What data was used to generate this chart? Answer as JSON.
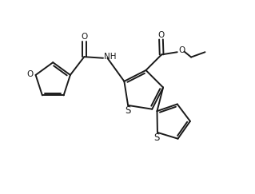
{
  "bg_color": "#ffffff",
  "line_color": "#1a1a1a",
  "line_width": 1.4,
  "font_size": 7.5,
  "fig_width": 3.19,
  "fig_height": 2.43,
  "dpi": 100,
  "xlim": [
    0,
    10
  ],
  "ylim": [
    0,
    7.6
  ]
}
